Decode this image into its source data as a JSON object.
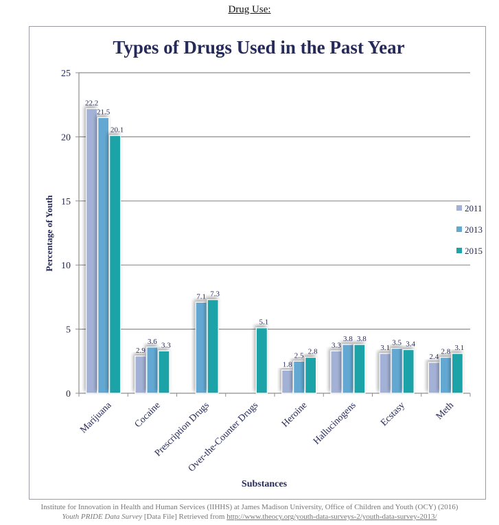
{
  "page": {
    "heading": "Drug Use:",
    "citation_line1": "Institute for Innovation in Health and Human Services (IIHHS) at James Madison University, Office of Children and Youth (OCY) (2016)",
    "citation_line2_italic": "Youth PRIDE Data Survey",
    "citation_line2_text": " [Data File] Retrieved from ",
    "citation_link": "http://www.theocy.org/youth-data-surveys-2/youth-data-survey-2013/"
  },
  "chart_data": {
    "type": "bar",
    "title": "Types of Drugs Used in the Past Year",
    "xlabel": "Substances",
    "ylabel": "Percentage of Youth",
    "ylim": [
      0,
      25
    ],
    "yticks": [
      0,
      5,
      10,
      15,
      20,
      25
    ],
    "grid": true,
    "legend_position": "right",
    "categories": [
      "Marijuana",
      "Cocaine",
      "Prescription Drugs",
      "Over-the-Counter Drugs",
      "Heroine",
      "Hallucinogens",
      "Ecstasy",
      "Meth"
    ],
    "series": [
      {
        "name": "2011",
        "color": "#a3b1d6",
        "values": [
          22.2,
          2.9,
          null,
          null,
          1.8,
          3.3,
          3.1,
          2.4
        ]
      },
      {
        "name": "2013",
        "color": "#62a8d2",
        "values": [
          21.5,
          3.6,
          7.1,
          null,
          2.5,
          3.8,
          3.5,
          2.8
        ]
      },
      {
        "name": "2015",
        "color": "#1fa3a8",
        "values": [
          20.1,
          3.3,
          7.3,
          5.1,
          2.8,
          3.8,
          3.4,
          3.1
        ]
      }
    ]
  }
}
